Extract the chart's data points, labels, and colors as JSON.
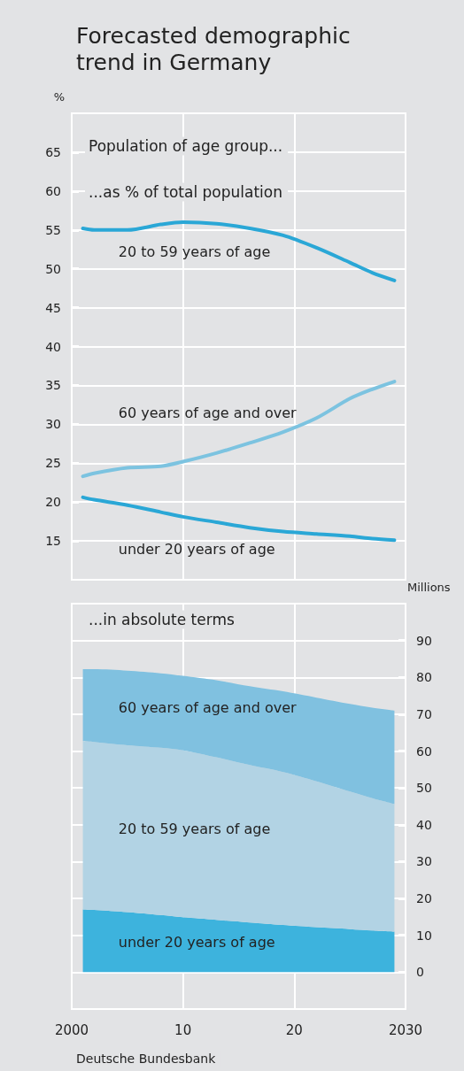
{
  "chart_data": [
    {
      "type": "line",
      "title": "Forecasted demographic trend in Germany",
      "ylabel": "%",
      "annotations": [
        "Population of age group...",
        "...as % of total population"
      ],
      "x": [
        2001,
        2002,
        2005,
        2008,
        2010,
        2013,
        2016,
        2019,
        2022,
        2025,
        2027,
        2029
      ],
      "series": [
        {
          "name": "20 to 59 years of age",
          "color": "#2aa7d6",
          "values": [
            55.2,
            55.0,
            55.0,
            55.7,
            56.0,
            55.8,
            55.2,
            54.3,
            52.7,
            50.8,
            49.5,
            48.5
          ]
        },
        {
          "name": "60 years of age and over",
          "color": "#7cc3e0",
          "values": [
            23.3,
            23.7,
            24.4,
            24.6,
            25.2,
            26.3,
            27.6,
            29.0,
            30.8,
            33.3,
            34.5,
            35.5
          ]
        },
        {
          "name": "under 20 years of age",
          "color": "#2aa7d6",
          "values": [
            20.6,
            20.3,
            19.6,
            18.7,
            18.1,
            17.4,
            16.7,
            16.2,
            15.9,
            15.6,
            15.3,
            15.1
          ]
        }
      ],
      "xlim": [
        2000,
        2030
      ],
      "xticks": [
        {
          "value": 2000,
          "label": null
        },
        {
          "value": 2010,
          "label": null
        },
        {
          "value": 2020,
          "label": null
        },
        {
          "value": 2030,
          "label": null
        }
      ],
      "ylim": [
        10,
        70
      ],
      "yticks": [
        15,
        20,
        25,
        30,
        35,
        40,
        45,
        50,
        55,
        60,
        65
      ],
      "tick_labels": "y",
      "grid": true,
      "legend": false,
      "marker": "none",
      "line_style": "solid"
    },
    {
      "type": "area",
      "stacked": true,
      "ylabel": "Millions",
      "annotations": [
        "...in absolute terms",
        "Deutsche Bundesbank"
      ],
      "x": [
        2001,
        2002,
        2005,
        2008,
        2010,
        2013,
        2016,
        2019,
        2022,
        2025,
        2027,
        2029
      ],
      "series": [
        {
          "name": "under 20 years of age",
          "color": "#3db3dd",
          "values": [
            17.0,
            16.9,
            16.3,
            15.5,
            14.9,
            14.2,
            13.5,
            12.8,
            12.2,
            11.7,
            11.3,
            11.0
          ]
        },
        {
          "name": "20 to 59 years of age",
          "color": "#b2d3e4",
          "values": [
            45.8,
            45.6,
            45.3,
            45.4,
            45.3,
            44.1,
            42.7,
            41.5,
            39.6,
            37.3,
            35.9,
            34.6
          ]
        },
        {
          "name": "60 years of age and over",
          "color": "#80c1e0",
          "values": [
            19.4,
            19.7,
            20.2,
            20.2,
            20.2,
            20.9,
            21.4,
            21.9,
            22.7,
            23.8,
            24.6,
            25.4
          ]
        }
      ],
      "xlim": [
        2000,
        2030
      ],
      "xticks": [
        2000,
        {
          "value": 2010,
          "label": "10"
        },
        {
          "value": 2020,
          "label": "20"
        },
        2030
      ],
      "ylim": [
        -10,
        100
      ],
      "yticks": [
        0,
        10,
        20,
        30,
        40,
        50,
        60,
        70,
        80,
        90
      ],
      "grid": true,
      "legend": false
    }
  ]
}
